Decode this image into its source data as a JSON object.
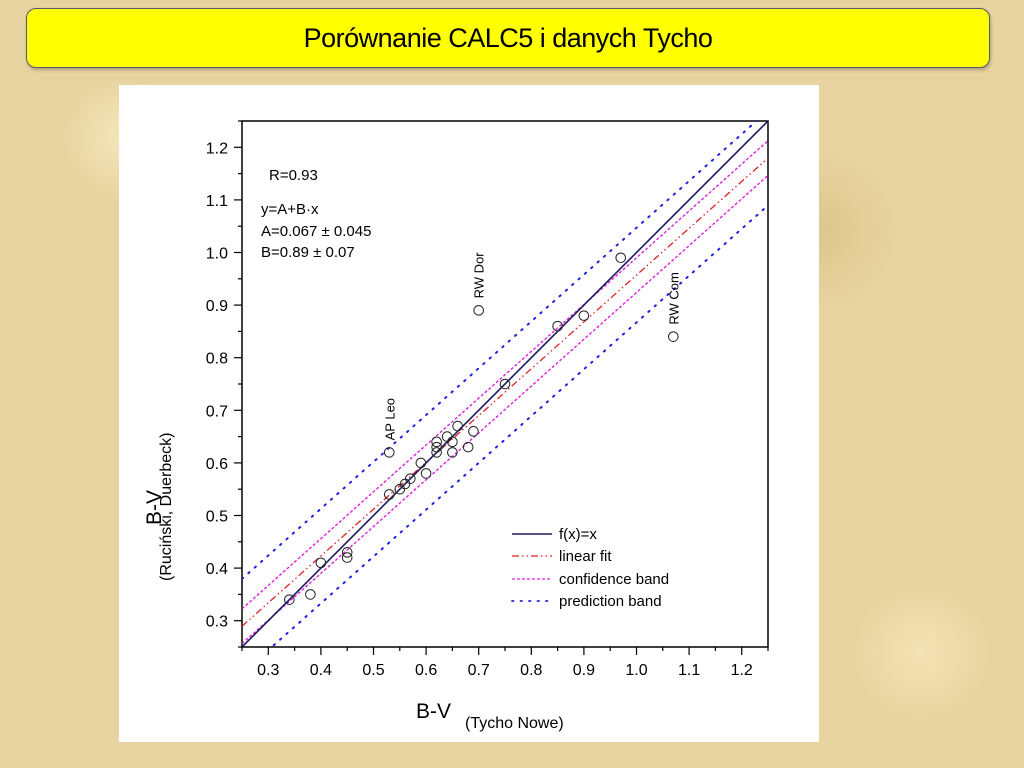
{
  "slide": {
    "title": "Porównanie CALC5 i danych Tycho"
  },
  "chart_data": {
    "type": "scatter",
    "xlim": [
      0.25,
      1.25
    ],
    "ylim": [
      0.25,
      1.25
    ],
    "x_ticks": [
      0.3,
      0.4,
      0.5,
      0.6,
      0.7,
      0.8,
      0.9,
      1.0,
      1.1,
      1.2
    ],
    "y_ticks": [
      0.3,
      0.4,
      0.5,
      0.6,
      0.7,
      0.8,
      0.9,
      1.0,
      1.1,
      1.2
    ],
    "xlabel_main": "B-V",
    "xlabel_sub": "(Tycho Nowe)",
    "ylabel_main": "B-V",
    "ylabel_sub": "(Ruciński, Duerbeck)",
    "annotations": {
      "r": "R=0.93",
      "equation": "y=A+B·x",
      "a": "A=0.067 ± 0.045",
      "b": "B=0.89 ± 0.07"
    },
    "points": [
      {
        "x": 0.34,
        "y": 0.34
      },
      {
        "x": 0.38,
        "y": 0.35
      },
      {
        "x": 0.4,
        "y": 0.41
      },
      {
        "x": 0.45,
        "y": 0.43
      },
      {
        "x": 0.45,
        "y": 0.42
      },
      {
        "x": 0.53,
        "y": 0.54
      },
      {
        "x": 0.55,
        "y": 0.55
      },
      {
        "x": 0.56,
        "y": 0.56
      },
      {
        "x": 0.57,
        "y": 0.57
      },
      {
        "x": 0.59,
        "y": 0.6
      },
      {
        "x": 0.6,
        "y": 0.58
      },
      {
        "x": 0.62,
        "y": 0.64
      },
      {
        "x": 0.62,
        "y": 0.63
      },
      {
        "x": 0.62,
        "y": 0.62
      },
      {
        "x": 0.64,
        "y": 0.65
      },
      {
        "x": 0.65,
        "y": 0.64
      },
      {
        "x": 0.65,
        "y": 0.62
      },
      {
        "x": 0.66,
        "y": 0.67
      },
      {
        "x": 0.68,
        "y": 0.63
      },
      {
        "x": 0.69,
        "y": 0.66
      },
      {
        "x": 0.75,
        "y": 0.75
      },
      {
        "x": 0.85,
        "y": 0.86
      },
      {
        "x": 0.9,
        "y": 0.88
      },
      {
        "x": 0.97,
        "y": 0.99
      },
      {
        "x": 0.53,
        "y": 0.62,
        "label": "AP Leo"
      },
      {
        "x": 0.7,
        "y": 0.89,
        "label": "RW Dor"
      },
      {
        "x": 1.07,
        "y": 0.84,
        "label": "RW Com"
      }
    ],
    "lines": {
      "identity": {
        "name": "f(x)=x",
        "color": "#1a1a5e",
        "slope": 1.0,
        "intercept": 0.0
      },
      "fit": {
        "name": "linear fit",
        "color": "#e02020",
        "slope": 0.89,
        "intercept": 0.067
      },
      "confidence": {
        "name": "confidence band",
        "color": "#e020e0",
        "offset": 0.033
      },
      "prediction": {
        "name": "prediction band",
        "color": "#2020e0",
        "offset": 0.09
      }
    },
    "legend": {
      "position": "lower-right",
      "items": [
        "f(x)=x",
        "linear fit",
        "confidence band",
        "prediction band"
      ]
    }
  }
}
